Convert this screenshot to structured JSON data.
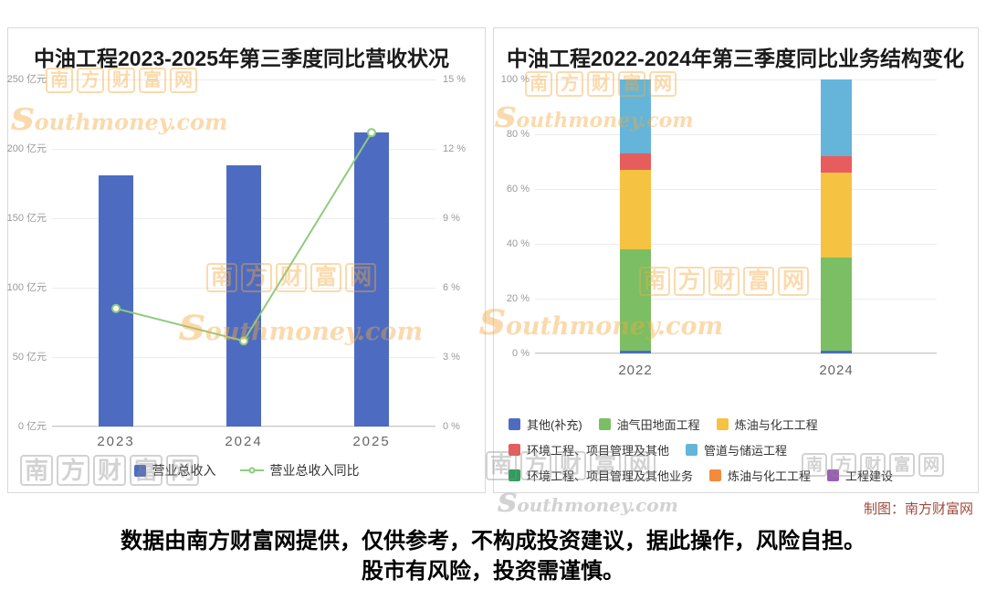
{
  "watermark": {
    "brand": "南方财富网",
    "domain": "southmoney.com"
  },
  "left_chart": {
    "title": "中油工程2023-2025年第三季度同比营收状况",
    "chart_data": {
      "type": "bar+line",
      "categories": [
        "2023",
        "2024",
        "2025"
      ],
      "series": [
        {
          "name": "营业总收入",
          "type": "bar",
          "unit": "亿元",
          "values": [
            181,
            188,
            212
          ],
          "color": "#4d6cc1"
        },
        {
          "name": "营业总收入同比",
          "type": "line",
          "unit": "%",
          "values": [
            5.1,
            3.7,
            12.7
          ],
          "color": "#8ecb7e"
        }
      ],
      "left_axis": {
        "unit": "亿元",
        "min": 0,
        "max": 250,
        "ticks": [
          "250 亿元",
          "200 亿元",
          "150 亿元",
          "100 亿元",
          "50 亿元",
          "0 亿元"
        ]
      },
      "right_axis": {
        "unit": "%",
        "min": 0,
        "max": 15,
        "ticks": [
          "15 %",
          "12 %",
          "9 %",
          "6 %",
          "3 %",
          "0 %"
        ]
      },
      "grid": true,
      "legend_position": "bottom"
    }
  },
  "right_chart": {
    "title": "中油工程2022-2024年第三季度同比业务结构变化",
    "credit": "制图：南方财富网",
    "chart_data": {
      "type": "stacked-bar",
      "stack_unit": "%",
      "categories": [
        "2022",
        "2024"
      ],
      "series": [
        {
          "name": "其他(补充)",
          "color": "#4d6cc1",
          "values": [
            1,
            1
          ],
          "legend_row": 1
        },
        {
          "name": "油气田地面工程",
          "color": "#7cbe63",
          "values": [
            37,
            34
          ],
          "legend_row": 1
        },
        {
          "name": "炼油与化工工程",
          "color": "#f5c242",
          "values": [
            29,
            31
          ],
          "legend_row": 1
        },
        {
          "name": "环境工程、项目管理及其他",
          "color": "#e75d5d",
          "values": [
            6,
            6
          ],
          "legend_row": 2
        },
        {
          "name": "管道与储运工程",
          "color": "#64b5d9",
          "values": [
            27,
            28
          ],
          "legend_row": 2
        },
        {
          "name": "环境工程、项目管理及其他业务",
          "color": "#2e9e5b",
          "values": [
            0,
            0
          ],
          "legend_row": 3
        },
        {
          "name": "炼油与化工工程",
          "color": "#f28b3b",
          "values": [
            0,
            0
          ],
          "legend_row": 3
        },
        {
          "name": "工程建设",
          "color": "#9a5fb5",
          "values": [
            0,
            0
          ],
          "legend_row": 3
        }
      ],
      "y_axis": {
        "min": 0,
        "max": 100,
        "ticks": [
          "100 %",
          "80 %",
          "60 %",
          "40 %",
          "20 %",
          "0 %"
        ]
      },
      "grid": true,
      "legend_position": "bottom"
    }
  },
  "disclaimer": {
    "line1": "数据由南方财富网提供，仅供参考，不构成投资建议，据此操作，风险自担。",
    "line2": "股市有风险，投资需谨慎。"
  }
}
